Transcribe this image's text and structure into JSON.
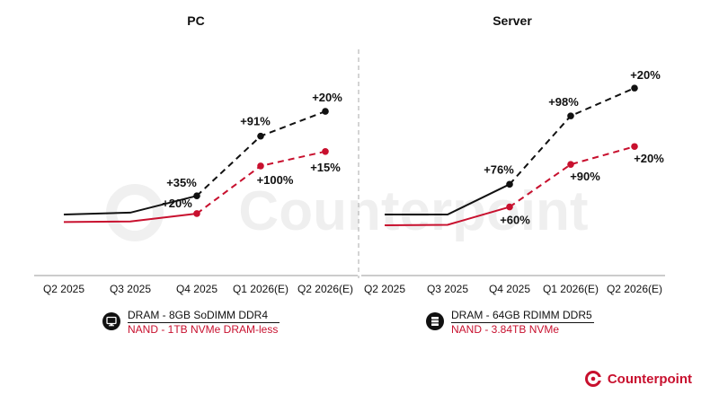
{
  "chart_data": [
    {
      "type": "line",
      "title": "PC",
      "categories": [
        "Q2 2025",
        "Q3 2025",
        "Q4 2025",
        "Q1 2026(E)",
        "Q2 2026(E)"
      ],
      "forecast_from_index": 2,
      "series": [
        {
          "name": "DRAM - 8GB SoDIMM DDR4",
          "color": "#111111",
          "values": [
            100,
            104,
            140,
            268,
            321
          ],
          "labels": [
            "",
            "",
            "+35%",
            "+91%",
            "+20%"
          ]
        },
        {
          "name": "NAND - 1TB NVMe DRAM-less",
          "color": "#c8102e",
          "values": [
            84,
            85,
            102,
            204,
            235
          ],
          "labels": [
            "",
            "",
            "+20%",
            "+100%",
            "+15%"
          ]
        }
      ],
      "grid": false
    },
    {
      "type": "line",
      "title": "Server",
      "categories": [
        "Q2 2025",
        "Q3 2025",
        "Q4 2025",
        "Q1 2026(E)",
        "Q2 2026(E)"
      ],
      "forecast_from_index": 2,
      "series": [
        {
          "name": "DRAM - 64GB RDIMM DDR5",
          "color": "#111111",
          "values": [
            100,
            100,
            176,
            348,
            418
          ],
          "labels": [
            "",
            "",
            "+76%",
            "+98%",
            "+20%"
          ]
        },
        {
          "name": "NAND - 3.84TB NVMe",
          "color": "#c8102e",
          "values": [
            73,
            74,
            119,
            226,
            271
          ],
          "labels": [
            "",
            "",
            "+60%",
            "+90%",
            "+20%"
          ]
        }
      ],
      "grid": false
    }
  ],
  "legends": [
    {
      "dram": "DRAM - 8GB SoDIMM DDR4",
      "nand": "NAND - 1TB NVMe DRAM-less",
      "icon": "desktop-computer-icon"
    },
    {
      "dram": "DRAM - 64GB RDIMM DDR5",
      "nand": "NAND - 3.84TB NVMe",
      "icon": "server-rack-icon"
    }
  ],
  "brand": {
    "name": "Counterpoint",
    "watermark": "Counterpoint",
    "color": "#c8102e"
  }
}
